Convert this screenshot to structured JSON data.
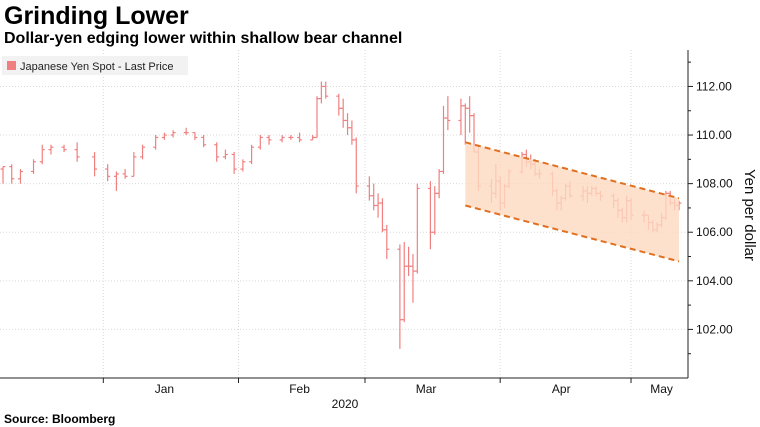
{
  "title": "Grinding Lower",
  "subtitle": "Dollar-yen edging lower within shallow bear channel",
  "source": "Source: Bloomberg",
  "chart_data": {
    "type": "line",
    "style": "ohlc-bars",
    "legend": {
      "label": "Japanese Yen Spot - Last Price",
      "placement": "top-left",
      "color": "#f08080"
    },
    "ylabel": "Yen per dollar",
    "ylim": [
      100.0,
      113.5
    ],
    "yticks": [
      "102.00",
      "104.00",
      "106.00",
      "108.00",
      "110.00",
      "112.00"
    ],
    "ytick_values": [
      102,
      104,
      106,
      108,
      110,
      112
    ],
    "xlim": [
      "2019-12-09",
      "2020-05-12"
    ],
    "xticks": [
      {
        "label": "Jan",
        "date": "2020-01-15"
      },
      {
        "label": "Feb",
        "date": "2020-02-15"
      },
      {
        "label": "Mar",
        "date": "2020-03-15"
      },
      {
        "label": "Apr",
        "date": "2020-04-15"
      },
      {
        "label": "May",
        "date": "2020-05-08"
      }
    ],
    "xtick_dividers": [
      "2020-01-01",
      "2020-02-01",
      "2020-03-01",
      "2020-04-01",
      "2020-05-01"
    ],
    "year_label": "2020",
    "grid": true,
    "series_color": "#f08080",
    "channel": {
      "fill": "#fcd9c0",
      "line_color": "#e07020",
      "upper": [
        {
          "x": "2020-03-24",
          "y": 109.7
        },
        {
          "x": "2020-05-12",
          "y": 107.4
        }
      ],
      "lower": [
        {
          "x": "2020-03-24",
          "y": 107.1
        },
        {
          "x": "2020-05-12",
          "y": 104.8
        }
      ]
    },
    "series": [
      {
        "name": "Japanese Yen Spot - Last Price",
        "ohlc": [
          [
            "2019-12-09",
            108.6,
            108.7,
            108.0,
            108.7
          ],
          [
            "2019-12-11",
            108.7,
            108.8,
            108.0,
            108.2
          ],
          [
            "2019-12-13",
            108.2,
            108.6,
            108.0,
            108.5
          ],
          [
            "2019-12-16",
            108.5,
            109.0,
            108.4,
            108.9
          ],
          [
            "2019-12-18",
            108.9,
            109.6,
            108.8,
            109.4
          ],
          [
            "2019-12-20",
            109.4,
            109.6,
            109.2,
            109.5
          ],
          [
            "2019-12-23",
            109.5,
            109.6,
            109.3,
            109.4
          ],
          [
            "2019-12-26",
            109.4,
            109.7,
            108.9,
            109.1
          ],
          [
            "2019-12-30",
            109.1,
            109.3,
            108.3,
            108.6
          ],
          [
            "2020-01-02",
            108.6,
            108.8,
            108.1,
            108.3
          ],
          [
            "2020-01-04",
            108.3,
            108.5,
            107.7,
            108.4
          ],
          [
            "2020-01-06",
            108.4,
            108.6,
            108.2,
            108.3
          ],
          [
            "2020-01-08",
            108.3,
            109.3,
            108.3,
            109.1
          ],
          [
            "2020-01-10",
            109.1,
            109.6,
            109.0,
            109.5
          ],
          [
            "2020-01-13",
            109.5,
            110.0,
            109.4,
            109.9
          ],
          [
            "2020-01-15",
            109.9,
            110.1,
            109.8,
            110.0
          ],
          [
            "2020-01-17",
            110.0,
            110.2,
            109.9,
            110.1
          ],
          [
            "2020-01-20",
            110.1,
            110.3,
            110.0,
            110.1
          ],
          [
            "2020-01-22",
            110.1,
            110.1,
            109.8,
            109.9
          ],
          [
            "2020-01-24",
            109.9,
            110.0,
            109.5,
            109.6
          ],
          [
            "2020-01-27",
            109.6,
            109.7,
            108.9,
            109.1
          ],
          [
            "2020-01-29",
            109.1,
            109.4,
            109.0,
            109.2
          ],
          [
            "2020-01-31",
            109.2,
            109.3,
            108.4,
            108.6
          ],
          [
            "2020-02-02",
            108.6,
            109.0,
            108.5,
            108.9
          ],
          [
            "2020-02-04",
            108.9,
            109.6,
            108.8,
            109.5
          ],
          [
            "2020-02-06",
            109.5,
            110.0,
            109.4,
            109.9
          ],
          [
            "2020-02-08",
            109.9,
            110.0,
            109.6,
            109.8
          ],
          [
            "2020-02-11",
            109.8,
            110.0,
            109.7,
            109.9
          ],
          [
            "2020-02-13",
            109.9,
            110.0,
            109.8,
            109.9
          ],
          [
            "2020-02-15",
            109.9,
            110.1,
            109.7,
            109.8
          ],
          [
            "2020-02-18",
            109.8,
            110.0,
            109.8,
            109.9
          ],
          [
            "2020-02-19",
            109.9,
            111.6,
            109.9,
            111.5
          ],
          [
            "2020-02-20",
            111.5,
            112.2,
            111.3,
            112.0
          ],
          [
            "2020-02-21",
            112.0,
            112.2,
            111.5,
            111.6
          ],
          [
            "2020-02-24",
            111.6,
            111.7,
            110.8,
            111.1
          ],
          [
            "2020-02-25",
            111.1,
            111.5,
            110.3,
            110.6
          ],
          [
            "2020-02-26",
            110.6,
            110.9,
            110.0,
            110.3
          ],
          [
            "2020-02-27",
            110.3,
            110.6,
            109.6,
            109.8
          ],
          [
            "2020-02-28",
            109.8,
            109.9,
            107.6,
            107.9
          ],
          [
            "2020-03-02",
            107.9,
            108.3,
            107.3,
            107.5
          ],
          [
            "2020-03-03",
            107.5,
            108.0,
            106.9,
            107.1
          ],
          [
            "2020-03-04",
            107.1,
            107.6,
            106.6,
            107.2
          ],
          [
            "2020-03-05",
            107.2,
            107.4,
            106.0,
            106.1
          ],
          [
            "2020-03-06",
            106.1,
            106.3,
            104.9,
            105.3
          ],
          [
            "2020-03-09",
            105.3,
            105.5,
            101.2,
            102.4
          ],
          [
            "2020-03-10",
            102.4,
            105.6,
            102.3,
            104.6
          ],
          [
            "2020-03-11",
            104.6,
            105.4,
            104.2,
            104.6
          ],
          [
            "2020-03-12",
            104.6,
            105.1,
            103.1,
            104.4
          ],
          [
            "2020-03-13",
            104.4,
            108.0,
            104.3,
            107.8
          ],
          [
            "2020-03-16",
            107.8,
            108.1,
            105.3,
            106.0
          ],
          [
            "2020-03-17",
            106.0,
            107.9,
            105.9,
            107.6
          ],
          [
            "2020-03-18",
            107.6,
            108.6,
            107.4,
            108.5
          ],
          [
            "2020-03-19",
            108.5,
            111.2,
            108.4,
            110.7
          ],
          [
            "2020-03-20",
            110.7,
            111.6,
            110.2,
            110.6
          ],
          [
            "2020-03-23",
            110.6,
            111.5,
            110.0,
            111.2
          ],
          [
            "2020-03-24",
            111.2,
            111.3,
            109.6,
            111.1
          ],
          [
            "2020-03-25",
            111.1,
            111.6,
            110.1,
            110.8
          ],
          [
            "2020-03-26",
            110.8,
            110.9,
            109.3,
            109.3
          ],
          [
            "2020-03-27",
            109.3,
            109.6,
            107.7,
            107.9
          ],
          [
            "2020-03-30",
            107.9,
            108.2,
            107.2,
            107.6
          ],
          [
            "2020-03-31",
            107.6,
            108.8,
            107.4,
            108.1
          ],
          [
            "2020-04-01",
            108.1,
            108.3,
            106.9,
            107.2
          ],
          [
            "2020-04-02",
            107.2,
            108.0,
            107.0,
            107.9
          ],
          [
            "2020-04-03",
            107.9,
            108.6,
            107.8,
            108.5
          ],
          [
            "2020-04-06",
            108.5,
            109.3,
            108.4,
            109.2
          ],
          [
            "2020-04-07",
            109.2,
            109.4,
            108.7,
            108.9
          ],
          [
            "2020-04-08",
            108.9,
            109.2,
            108.6,
            108.8
          ],
          [
            "2020-04-09",
            108.8,
            109.0,
            108.3,
            108.4
          ],
          [
            "2020-04-10",
            108.4,
            108.6,
            108.2,
            108.4
          ],
          [
            "2020-04-13",
            108.4,
            108.5,
            107.5,
            107.7
          ],
          [
            "2020-04-14",
            107.7,
            107.8,
            106.9,
            107.2
          ],
          [
            "2020-04-15",
            107.2,
            107.5,
            106.9,
            107.4
          ],
          [
            "2020-04-16",
            107.4,
            108.0,
            107.3,
            107.9
          ],
          [
            "2020-04-17",
            107.9,
            108.1,
            107.4,
            107.5
          ],
          [
            "2020-04-20",
            107.5,
            107.9,
            107.3,
            107.7
          ],
          [
            "2020-04-21",
            107.7,
            107.9,
            107.2,
            107.6
          ],
          [
            "2020-04-22",
            107.6,
            107.9,
            107.5,
            107.8
          ],
          [
            "2020-04-23",
            107.8,
            107.9,
            107.5,
            107.6
          ],
          [
            "2020-04-24",
            107.6,
            107.7,
            107.3,
            107.5
          ],
          [
            "2020-04-27",
            107.5,
            107.6,
            107.0,
            107.3
          ],
          [
            "2020-04-28",
            107.3,
            107.4,
            106.6,
            106.9
          ],
          [
            "2020-04-29",
            106.9,
            107.0,
            106.4,
            106.6
          ],
          [
            "2020-04-30",
            106.6,
            107.5,
            106.4,
            107.3
          ],
          [
            "2020-05-01",
            107.3,
            107.4,
            106.5,
            106.7
          ],
          [
            "2020-05-04",
            106.7,
            106.9,
            106.4,
            106.7
          ],
          [
            "2020-05-05",
            106.7,
            106.7,
            106.1,
            106.4
          ],
          [
            "2020-05-06",
            106.4,
            106.5,
            106.0,
            106.1
          ],
          [
            "2020-05-07",
            106.1,
            106.4,
            106.0,
            106.3
          ],
          [
            "2020-05-08",
            106.3,
            106.8,
            106.2,
            106.6
          ],
          [
            "2020-05-09",
            106.6,
            107.7,
            106.5,
            107.6
          ],
          [
            "2020-05-10",
            107.6,
            107.7,
            107.1,
            107.2
          ],
          [
            "2020-05-11",
            107.2,
            107.4,
            106.9,
            107.1
          ],
          [
            "2020-05-12",
            107.1,
            107.3,
            106.9,
            107.2
          ]
        ]
      }
    ]
  }
}
